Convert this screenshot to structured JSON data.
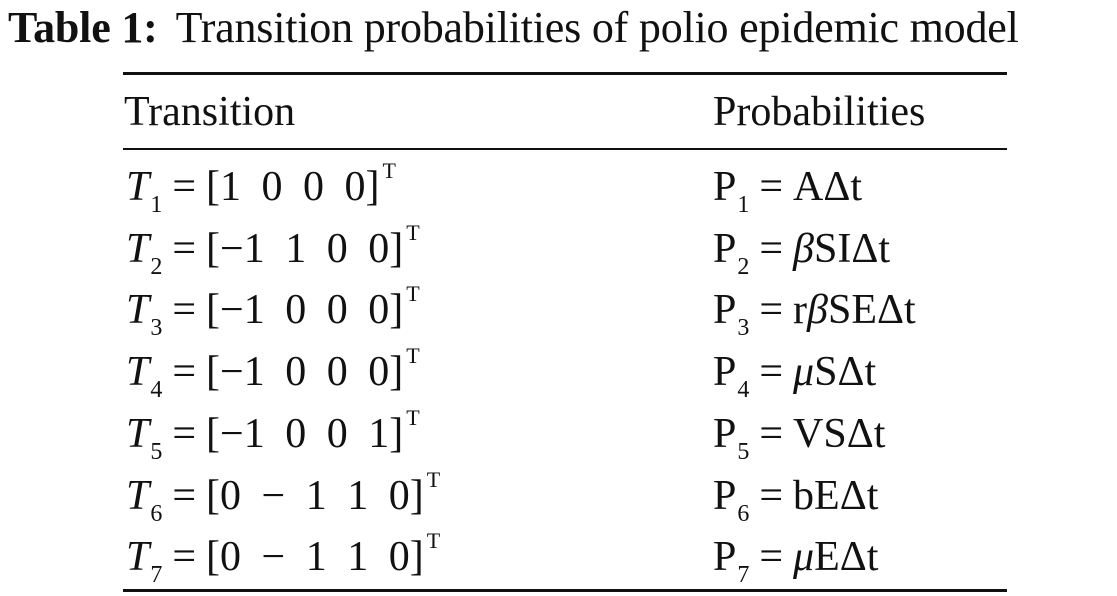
{
  "caption": {
    "label": "Table 1:",
    "text": "Transition probabilities of polio epidemic model"
  },
  "columns": {
    "transition": "Transition",
    "probabilities": "Probabilities"
  },
  "rows": [
    {
      "t_symbol": "T",
      "t_sub": "1",
      "vector": "[1  0  0  0]",
      "sup": "T",
      "p_symbol": "P",
      "p_sub": "1",
      "p_pre": "",
      "p_greek": "",
      "p_post": "AΔt"
    },
    {
      "t_symbol": "T",
      "t_sub": "2",
      "vector": "[−1  1  0  0]",
      "sup": "T",
      "p_symbol": "P",
      "p_sub": "2",
      "p_pre": "",
      "p_greek": "β",
      "p_post": "SIΔt"
    },
    {
      "t_symbol": "T",
      "t_sub": "3",
      "vector": "[−1  0  0  0]",
      "sup": "T",
      "p_symbol": "P",
      "p_sub": "3",
      "p_pre": "r",
      "p_greek": "β",
      "p_post": "SEΔt"
    },
    {
      "t_symbol": "T",
      "t_sub": "4",
      "vector": "[−1  0  0  0]",
      "sup": "T",
      "p_symbol": "P",
      "p_sub": "4",
      "p_pre": "",
      "p_greek": "μ",
      "p_post": "SΔt"
    },
    {
      "t_symbol": "T",
      "t_sub": "5",
      "vector": "[−1  0  0  1]",
      "sup": "T",
      "p_symbol": "P",
      "p_sub": "5",
      "p_pre": "",
      "p_greek": "",
      "p_post": "VSΔt"
    },
    {
      "t_symbol": "T",
      "t_sub": "6",
      "vector": "[0   − 1  1  0]",
      "sup": "T",
      "p_symbol": "P",
      "p_sub": "6",
      "p_pre": "",
      "p_greek": "",
      "p_post": "bEΔt"
    },
    {
      "t_symbol": "T",
      "t_sub": "7",
      "vector": "[0   − 1  1  0]",
      "sup": "T",
      "p_symbol": "P",
      "p_sub": "7",
      "p_pre": "",
      "p_greek": "μ",
      "p_post": "EΔt"
    }
  ]
}
